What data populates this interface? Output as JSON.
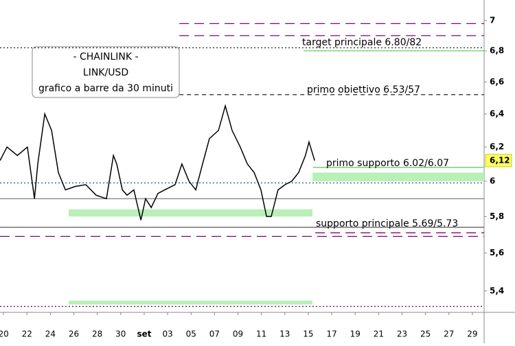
{
  "chart_data": {
    "type": "line",
    "title_lines": [
      "- CHAINLINK -",
      "LINK/USD",
      "grafico a barre da 30 minuti"
    ],
    "log_scale": true,
    "ylim": [
      5.29,
      7.14
    ],
    "yticks": [
      {
        "value": 5.4,
        "label": "5,4"
      },
      {
        "value": 5.6,
        "label": "5,6"
      },
      {
        "value": 5.8,
        "label": "5,8"
      },
      6,
      {
        "value": 6.2,
        "label": "6,2"
      },
      {
        "value": 6.4,
        "label": "6,4"
      },
      {
        "value": 6.6,
        "label": "6,6"
      },
      {
        "value": 6.8,
        "label": "6,8"
      },
      7
    ],
    "xlim": [
      -0.15,
      20.5
    ],
    "xticks": [
      {
        "value": 0,
        "label": "20"
      },
      {
        "value": 1,
        "label": "22"
      },
      {
        "value": 2,
        "label": "24"
      },
      {
        "value": 3,
        "label": "26"
      },
      {
        "value": 4,
        "label": "28"
      },
      {
        "value": 5,
        "label": "30"
      },
      {
        "value": 6,
        "label": "set"
      },
      {
        "value": 7,
        "label": "03"
      },
      {
        "value": 8,
        "label": "05"
      },
      {
        "value": 9,
        "label": "07"
      },
      {
        "value": 10,
        "label": "09"
      },
      {
        "value": 11,
        "label": "11"
      },
      {
        "value": 12,
        "label": "13"
      },
      {
        "value": 13,
        "label": "15"
      },
      {
        "value": 14,
        "label": "17"
      },
      {
        "value": 15,
        "label": "19"
      },
      {
        "value": 16,
        "label": "21"
      },
      {
        "value": 17,
        "label": "23"
      },
      {
        "value": 18,
        "label": "25"
      },
      {
        "value": 19,
        "label": "27"
      },
      {
        "value": 20,
        "label": "29"
      }
    ],
    "series": [
      {
        "color": "#000000",
        "x": [
          -0.15,
          0.15,
          0.59,
          1.02,
          1.32,
          1.46,
          1.76,
          2.05,
          2.34,
          2.64,
          3.07,
          3.51,
          3.95,
          4.39,
          4.69,
          4.83,
          5.07,
          5.27,
          5.56,
          5.86,
          6.06,
          6.3,
          6.59,
          6.88,
          7.32,
          7.61,
          7.91,
          8.2,
          8.49,
          8.78,
          9.17,
          9.46,
          9.75,
          10.1,
          10.4,
          10.69,
          10.98,
          11.22,
          11.42,
          11.71,
          12.01,
          12.3,
          12.59,
          12.88,
          13.03,
          13.27
        ],
        "values": [
          6.12,
          6.2,
          6.15,
          6.2,
          5.9,
          6.1,
          6.4,
          6.3,
          6.05,
          5.95,
          5.97,
          5.98,
          5.92,
          5.9,
          6.15,
          6.1,
          5.95,
          5.92,
          5.95,
          5.78,
          5.9,
          5.85,
          5.93,
          5.95,
          5.98,
          6.1,
          6.0,
          5.95,
          6.1,
          6.25,
          6.3,
          6.45,
          6.3,
          6.2,
          6.1,
          6.05,
          5.95,
          5.8,
          5.8,
          5.95,
          5.98,
          6.0,
          6.05,
          6.15,
          6.23,
          6.12
        ]
      }
    ],
    "last_price": {
      "value": 6.12,
      "label": "6,12"
    },
    "levels": [
      {
        "value": 6.98,
        "from": 7.5,
        "color": "#800080",
        "style": "long-dash"
      },
      {
        "value": 6.9,
        "from": 7.5,
        "color": "#800080",
        "style": "long-dash"
      },
      {
        "value": 6.82,
        "from": -0.15,
        "color": "#333333",
        "style": "dot"
      },
      {
        "value": 6.8,
        "from": 12.8,
        "color": "#66cc66",
        "style": "solid"
      },
      {
        "value": 6.52,
        "from": 7.5,
        "color": "#333333",
        "style": "dash"
      },
      {
        "value": 6.08,
        "from": 13.2,
        "color": "#66cc66",
        "style": "solid"
      },
      {
        "value": 5.99,
        "from": -0.15,
        "color": "#3355aa",
        "style": "dot"
      },
      {
        "value": 5.9,
        "from": -0.15,
        "color": "#888888",
        "style": "solid"
      },
      {
        "value": 5.74,
        "from": -0.15,
        "color": "#555555",
        "style": "solid"
      },
      {
        "value": 5.71,
        "from": 13.3,
        "color": "#800080",
        "style": "long-dash"
      },
      {
        "value": 5.69,
        "from": -0.15,
        "color": "#800080",
        "style": "long-dash"
      },
      {
        "value": 5.32,
        "from": -0.15,
        "color": "#800080",
        "style": "dot"
      }
    ],
    "zones": [
      {
        "y0": 6.0,
        "y1": 6.05,
        "x0": 13.18,
        "x1": 20.5
      },
      {
        "y0": 5.8,
        "y1": 5.84,
        "x0": 2.78,
        "x1": 13.18
      },
      {
        "y0": 5.33,
        "y1": 5.35,
        "x0": 2.78,
        "x1": 13.18
      }
    ],
    "annotations": [
      "target principale 6.80/82",
      "primo obiettivo 6.53/57",
      "primo supporto 6.02/6.07",
      "supporto principale 5.69/5.73"
    ]
  }
}
